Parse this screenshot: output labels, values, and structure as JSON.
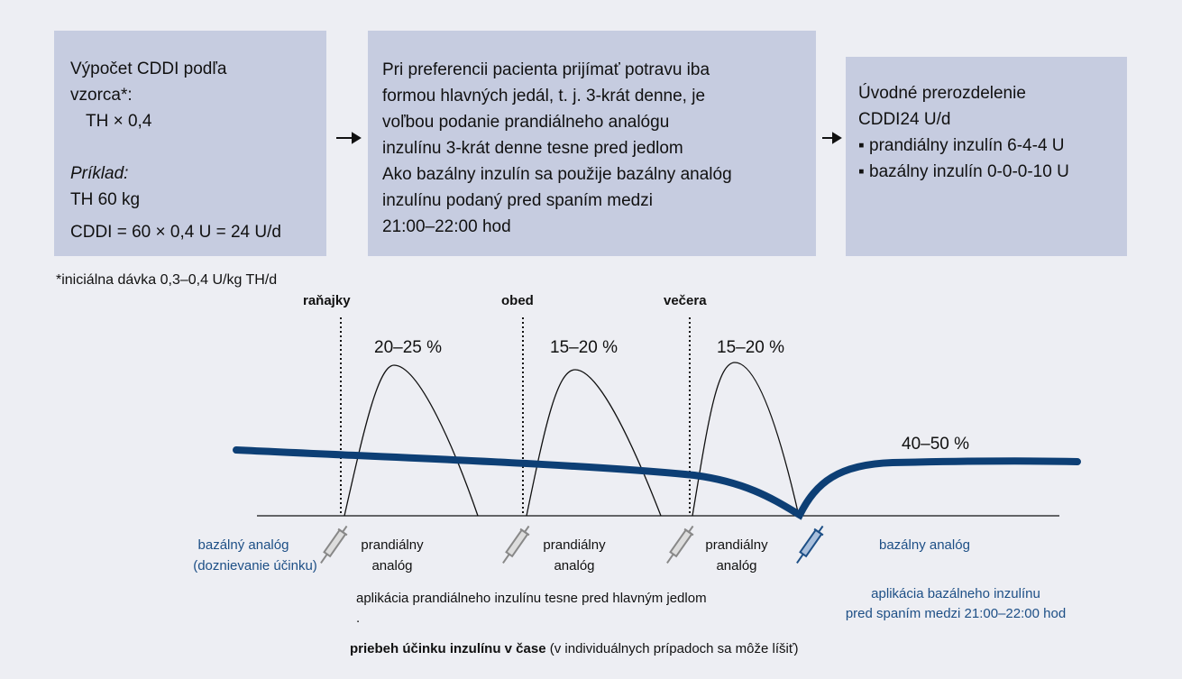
{
  "boxes": [
    {
      "lines": [
        "Výpočet CDDI podľa",
        "vzorca*:",
        "TH × 0,4",
        "Príklad:",
        "TH 60 kg",
        "CDDI = 60 × 0,4 U = 24 U/d"
      ]
    },
    {
      "lines": [
        "Pri preferencii pacienta prijímať potravu iba",
        "formou hlavných jedál, t. j. 3-krát denne, je",
        "voľbou podanie prandiálneho analógu",
        "inzulínu 3-krát denne tesne pred jedlom",
        "Ako bazálny inzulín sa použije bazálny analóg",
        "inzulínu podaný pred spaním medzi",
        "21:00–22:00 hod"
      ]
    },
    {
      "lines": [
        "Úvodné prerozdelenie",
        "CDDI24 U/d",
        "▪ prandiálny inzulín 6-4-4 U",
        "▪ bazálny inzulín 0-0-0-10 U"
      ]
    }
  ],
  "footnote": "*iniciálna dávka 0,3–0,4 U/kg TH/d",
  "meals": [
    "raňajky",
    "obed",
    "večera"
  ],
  "percentages": [
    "20–25 %",
    "15–20 %",
    "15–20 %"
  ],
  "basal_percentage": "40–50 %",
  "basal_left": [
    "bazálný analóg",
    "(doznievanie účinku)"
  ],
  "prandial_label": [
    "prandiálny",
    "analóg"
  ],
  "basal_right": "bazálny analóg",
  "prandial_note": "aplikácia prandiálneho inzulínu tesne pred hlavným jedlom",
  "note_mark": ".",
  "basal_note": [
    "aplikácia bazálneho inzulínu",
    "pred spaním medzi 21:00–22:00 hod"
  ],
  "caption": {
    "bold": "priebeh účinku inzulínu v čase",
    "rest": " (v individuálnych prípadoch sa môže líšiť)"
  }
}
